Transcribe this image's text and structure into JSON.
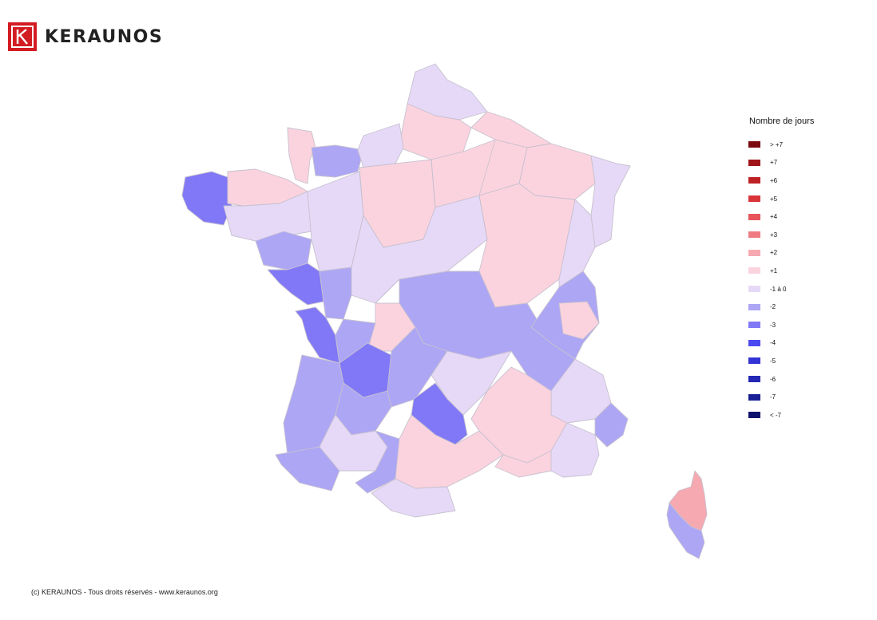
{
  "brand": {
    "name": "KERAUNOS",
    "color": "#d21c22",
    "icon": "keraunos-k-logo"
  },
  "legend": {
    "title": "Nombre de jours",
    "items": [
      {
        "label": "> +7",
        "color": "#7b0b10"
      },
      {
        "label": "+7",
        "color": "#9e1418"
      },
      {
        "label": "+6",
        "color": "#be2124"
      },
      {
        "label": "+5",
        "color": "#d9343a"
      },
      {
        "label": "+4",
        "color": "#e9545b"
      },
      {
        "label": "+3",
        "color": "#ef7b82"
      },
      {
        "label": "+2",
        "color": "#f6a9b1"
      },
      {
        "label": "+1",
        "color": "#fbd3de"
      },
      {
        "label": "-1 à 0",
        "color": "#e6d9f7"
      },
      {
        "label": "-2",
        "color": "#ada6f5"
      },
      {
        "label": "-3",
        "color": "#8078f6"
      },
      {
        "label": "-4",
        "color": "#4b4af0"
      },
      {
        "label": "-5",
        "color": "#3333d6"
      },
      {
        "label": "-6",
        "color": "#2528b4"
      },
      {
        "label": "-7",
        "color": "#191f95"
      },
      {
        "label": "< -7",
        "color": "#0e126c"
      }
    ]
  },
  "regions": [
    {
      "name": "nord-pas-de-calais",
      "class": "-1 à 0"
    },
    {
      "name": "north-east-border",
      "class": "+1"
    },
    {
      "name": "north-center",
      "class": "+1"
    },
    {
      "name": "normandy-cotentin",
      "class": "+1"
    },
    {
      "name": "calvados",
      "class": "-2"
    },
    {
      "name": "upper-normandy",
      "class": "-1 à 0"
    },
    {
      "name": "paris-basin",
      "class": "+1"
    },
    {
      "name": "champagne",
      "class": "+1"
    },
    {
      "name": "lorraine",
      "class": "+1"
    },
    {
      "name": "alsace",
      "class": "-1 à 0"
    },
    {
      "name": "finistere",
      "class": "-3"
    },
    {
      "name": "cotes-darmor",
      "class": "+1"
    },
    {
      "name": "brittany-south",
      "class": "-1 à 0"
    },
    {
      "name": "loire-atlantique",
      "class": "-2"
    },
    {
      "name": "pays-de-la-loire",
      "class": "-1 à 0"
    },
    {
      "name": "centre-val-de-loire",
      "class": "-1 à 0"
    },
    {
      "name": "burgundy",
      "class": "+1"
    },
    {
      "name": "franche-comte",
      "class": "-1 à 0"
    },
    {
      "name": "vendee",
      "class": "-3"
    },
    {
      "name": "deux-sevres",
      "class": "-2"
    },
    {
      "name": "charente-maritime",
      "class": "-3"
    },
    {
      "name": "charente",
      "class": "-2"
    },
    {
      "name": "haute-vienne",
      "class": "+1"
    },
    {
      "name": "dordogne",
      "class": "-3"
    },
    {
      "name": "massif-central",
      "class": "-2"
    },
    {
      "name": "lozere",
      "class": "-1 à 0"
    },
    {
      "name": "rhone-loire",
      "class": "-2"
    },
    {
      "name": "ain-savoie",
      "class": "-2"
    },
    {
      "name": "haute-savoie",
      "class": "+1"
    },
    {
      "name": "isere-hautes-alpes",
      "class": "-1 à 0"
    },
    {
      "name": "gironde-landes",
      "class": "-2"
    },
    {
      "name": "lot-et-garonne",
      "class": "-2"
    },
    {
      "name": "aveyron",
      "class": "-3"
    },
    {
      "name": "ardeche-drome",
      "class": "+1"
    },
    {
      "name": "pyrenees-atlantiques",
      "class": "-2"
    },
    {
      "name": "gers",
      "class": "-1 à 0"
    },
    {
      "name": "haute-garonne",
      "class": "-2"
    },
    {
      "name": "occitanie-south",
      "class": "+1"
    },
    {
      "name": "gard-vaucluse",
      "class": "+1"
    },
    {
      "name": "bouches-du-rhone-var",
      "class": "-1 à 0"
    },
    {
      "name": "alpes-maritimes",
      "class": "-2"
    },
    {
      "name": "pyrenees-orientales",
      "class": "-1 à 0"
    },
    {
      "name": "haute-corse",
      "class": "+2"
    },
    {
      "name": "corse-du-sud",
      "class": "-2"
    }
  ],
  "footer": {
    "copyright": "(c) KERAUNOS - Tous droits réservés - www.keraunos.org"
  }
}
